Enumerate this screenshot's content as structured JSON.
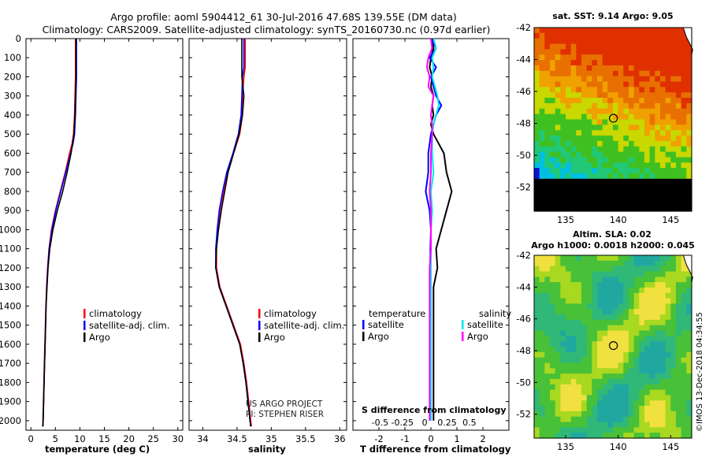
{
  "title": {
    "line1": "Argo profile: aoml 5904412_61 30-Jul-2016 47.68S 139.55E (DM data)",
    "line2": "Climatology: CARS2009. Satellite-adjusted climatology: synTS_20160730.nc (0.97d earlier)"
  },
  "colors": {
    "climatology": "#ff0000",
    "satellite": "#0000ff",
    "argo": "#000000",
    "sal_satellite": "#00e5ee",
    "sal_argo": "#ff00ff"
  },
  "chart_data": [
    {
      "type": "line",
      "id": "temperature",
      "xlabel": "temperature (deg C)",
      "xlim": [
        -1,
        31
      ],
      "xticks": [
        0,
        5,
        10,
        15,
        20,
        25,
        30
      ],
      "ylim": [
        0,
        2050
      ],
      "yticks": [
        0,
        100,
        200,
        300,
        400,
        500,
        600,
        700,
        800,
        900,
        1000,
        1100,
        1200,
        1300,
        1400,
        1500,
        1600,
        1700,
        1800,
        1900,
        2000
      ],
      "y": [
        0,
        100,
        200,
        300,
        400,
        500,
        550,
        600,
        700,
        800,
        900,
        1000,
        1100,
        1200,
        1300,
        1400,
        1500,
        1600,
        1700,
        1800,
        1900,
        2000,
        2030
      ],
      "series": [
        {
          "name": "climatology",
          "values": [
            9.1,
            9.1,
            9.1,
            9.0,
            8.9,
            8.7,
            8.4,
            7.9,
            7.0,
            6.0,
            5.0,
            4.2,
            3.7,
            3.4,
            3.2,
            3.05,
            2.95,
            2.85,
            2.75,
            2.65,
            2.55,
            2.45,
            2.4
          ]
        },
        {
          "name": "satellite-adj. clim.",
          "values": [
            9.3,
            9.3,
            9.3,
            9.2,
            9.1,
            8.9,
            8.6,
            8.1,
            7.1,
            6.1,
            5.1,
            4.3,
            3.75,
            3.45,
            3.25,
            3.1,
            3.0,
            2.9,
            2.8,
            2.7,
            2.6,
            2.5,
            2.45
          ]
        },
        {
          "name": "Argo",
          "values": [
            9.2,
            9.2,
            9.2,
            9.1,
            9.0,
            8.8,
            8.5,
            8.2,
            7.4,
            6.5,
            5.4,
            4.5,
            3.85,
            3.5,
            3.3,
            3.1,
            3.0,
            2.9,
            2.8,
            2.7,
            2.6,
            2.5,
            2.45
          ]
        }
      ],
      "legend": {
        "position": "bottom-right",
        "entries": [
          "climatology",
          "satellite-adj. clim.",
          "Argo"
        ]
      }
    },
    {
      "type": "line",
      "id": "salinity",
      "xlabel": "salinity",
      "xlim": [
        33.8,
        36.1
      ],
      "xticks": [
        34,
        34.5,
        35,
        35.5,
        36
      ],
      "ylim": [
        0,
        2050
      ],
      "y": [
        0,
        100,
        150,
        200,
        300,
        400,
        500,
        600,
        700,
        800,
        900,
        1000,
        1100,
        1200,
        1300,
        1400,
        1500,
        1600,
        1700,
        1800,
        1900,
        2000,
        2030
      ],
      "series": [
        {
          "name": "climatology",
          "values": [
            34.62,
            34.62,
            34.62,
            34.6,
            34.58,
            34.58,
            34.54,
            34.45,
            34.36,
            34.3,
            34.25,
            34.22,
            34.2,
            34.2,
            34.25,
            34.35,
            34.45,
            34.55,
            34.6,
            34.64,
            34.67,
            34.7,
            34.71
          ]
        },
        {
          "name": "satellite-adj. clim.",
          "values": [
            34.6,
            34.6,
            34.6,
            34.58,
            34.57,
            34.56,
            34.52,
            34.44,
            34.35,
            34.29,
            34.24,
            34.21,
            34.19,
            34.19,
            34.24,
            34.34,
            34.44,
            34.54,
            34.59,
            34.63,
            34.66,
            34.69,
            34.7
          ]
        },
        {
          "name": "Argo",
          "values": [
            34.57,
            34.57,
            34.57,
            34.57,
            34.6,
            34.58,
            34.53,
            34.45,
            34.37,
            34.32,
            34.27,
            34.23,
            34.2,
            34.19,
            34.24,
            34.34,
            34.44,
            34.54,
            34.59,
            34.63,
            34.66,
            34.69,
            34.7
          ]
        }
      ],
      "legend": {
        "position": "bottom-right",
        "entries": [
          "climatology",
          "satellite-adj. clim.",
          "Argo"
        ]
      },
      "annotations": [
        "US ARGO PROJECT",
        "PI: STEPHEN RISER"
      ]
    },
    {
      "type": "line",
      "id": "difference",
      "xlabel": "T difference from climatology",
      "xlabel2": "S difference from climatology",
      "xlim": [
        -3,
        3
      ],
      "xticks": [
        -2,
        -1,
        0,
        1,
        2
      ],
      "xticks_s": [
        "-0.5",
        "-0.25",
        "0",
        "0.25",
        "0.5"
      ],
      "ylim": [
        0,
        2050
      ],
      "y": [
        0,
        50,
        100,
        150,
        200,
        250,
        300,
        350,
        400,
        450,
        500,
        600,
        700,
        800,
        900,
        1000,
        1100,
        1200,
        1300,
        1400,
        1500,
        1600,
        1700,
        1800,
        1900,
        2000
      ],
      "series": [
        {
          "name": "temperature Argo",
          "values": [
            0.05,
            0.1,
            0.0,
            -0.05,
            0.05,
            0.0,
            0.1,
            0.05,
            0.1,
            0.0,
            0.1,
            0.5,
            0.6,
            0.8,
            0.6,
            0.4,
            0.2,
            0.25,
            0.1,
            0.1,
            0.1,
            0.1,
            0.1,
            0.1,
            0.1,
            0.1
          ]
        },
        {
          "name": "temperature satellite",
          "values": [
            0.0,
            0.2,
            -0.05,
            0.2,
            0.0,
            0.1,
            0.2,
            0.4,
            0.2,
            0.1,
            0.0,
            -0.1,
            -0.1,
            -0.2,
            -0.05,
            0.0,
            -0.02,
            -0.02,
            0.0,
            0.0,
            0.0,
            0.0,
            0.0,
            0.0,
            0.0,
            0.0
          ]
        },
        {
          "name": "salinity satellite",
          "values": [
            0.1,
            0.2,
            0.05,
            0.1,
            0.05,
            0.15,
            0.25,
            0.3,
            0.2,
            0.1,
            0.05,
            0.05,
            0.1,
            0.0,
            0.05,
            0.0,
            0.0,
            0.0,
            0.0,
            0.0,
            0.0,
            0.0,
            0.0,
            0.0,
            0.0,
            0.0
          ]
        },
        {
          "name": "salinity Argo",
          "values": [
            0.0,
            0.05,
            -0.1,
            -0.15,
            -0.05,
            -0.1,
            0.1,
            0.05,
            0.0,
            0.05,
            0.05,
            0.0,
            0.0,
            -0.05,
            0.0,
            0.0,
            0.0,
            -0.05,
            -0.05,
            -0.05,
            -0.05,
            -0.05,
            -0.05,
            -0.05,
            -0.05,
            -0.05
          ]
        }
      ],
      "legend": {
        "temperature_title": "temperature",
        "salinity_title": "salinity",
        "temperature_entries": [
          "satellite",
          "Argo"
        ],
        "salinity_entries": [
          "satellite",
          "Argo"
        ]
      }
    },
    {
      "type": "heatmap",
      "id": "sst_map",
      "title": "sat. SST: 9.14 Argo: 9.05",
      "xlim": [
        132,
        147
      ],
      "ylim": [
        -53.5,
        -42
      ],
      "xticks": [
        135,
        140,
        145
      ],
      "yticks": [
        -42,
        -44,
        -46,
        -48,
        -50,
        -52
      ],
      "profile_location": {
        "lon": 139.55,
        "lat": -47.68
      }
    },
    {
      "type": "heatmap",
      "id": "sla_map",
      "title": "Altim. SLA: 0.02",
      "subtitle": "Argo h1000: 0.0018 h2000: 0.045",
      "xlim": [
        132,
        147
      ],
      "ylim": [
        -53.5,
        -42
      ],
      "xticks": [
        135,
        140,
        145
      ],
      "yticks": [
        -42,
        -44,
        -46,
        -48,
        -50,
        -52
      ],
      "profile_location": {
        "lon": 139.55,
        "lat": -47.68
      }
    }
  ],
  "watermark": "©IMOS 13-Dec-2018 04:34:55"
}
